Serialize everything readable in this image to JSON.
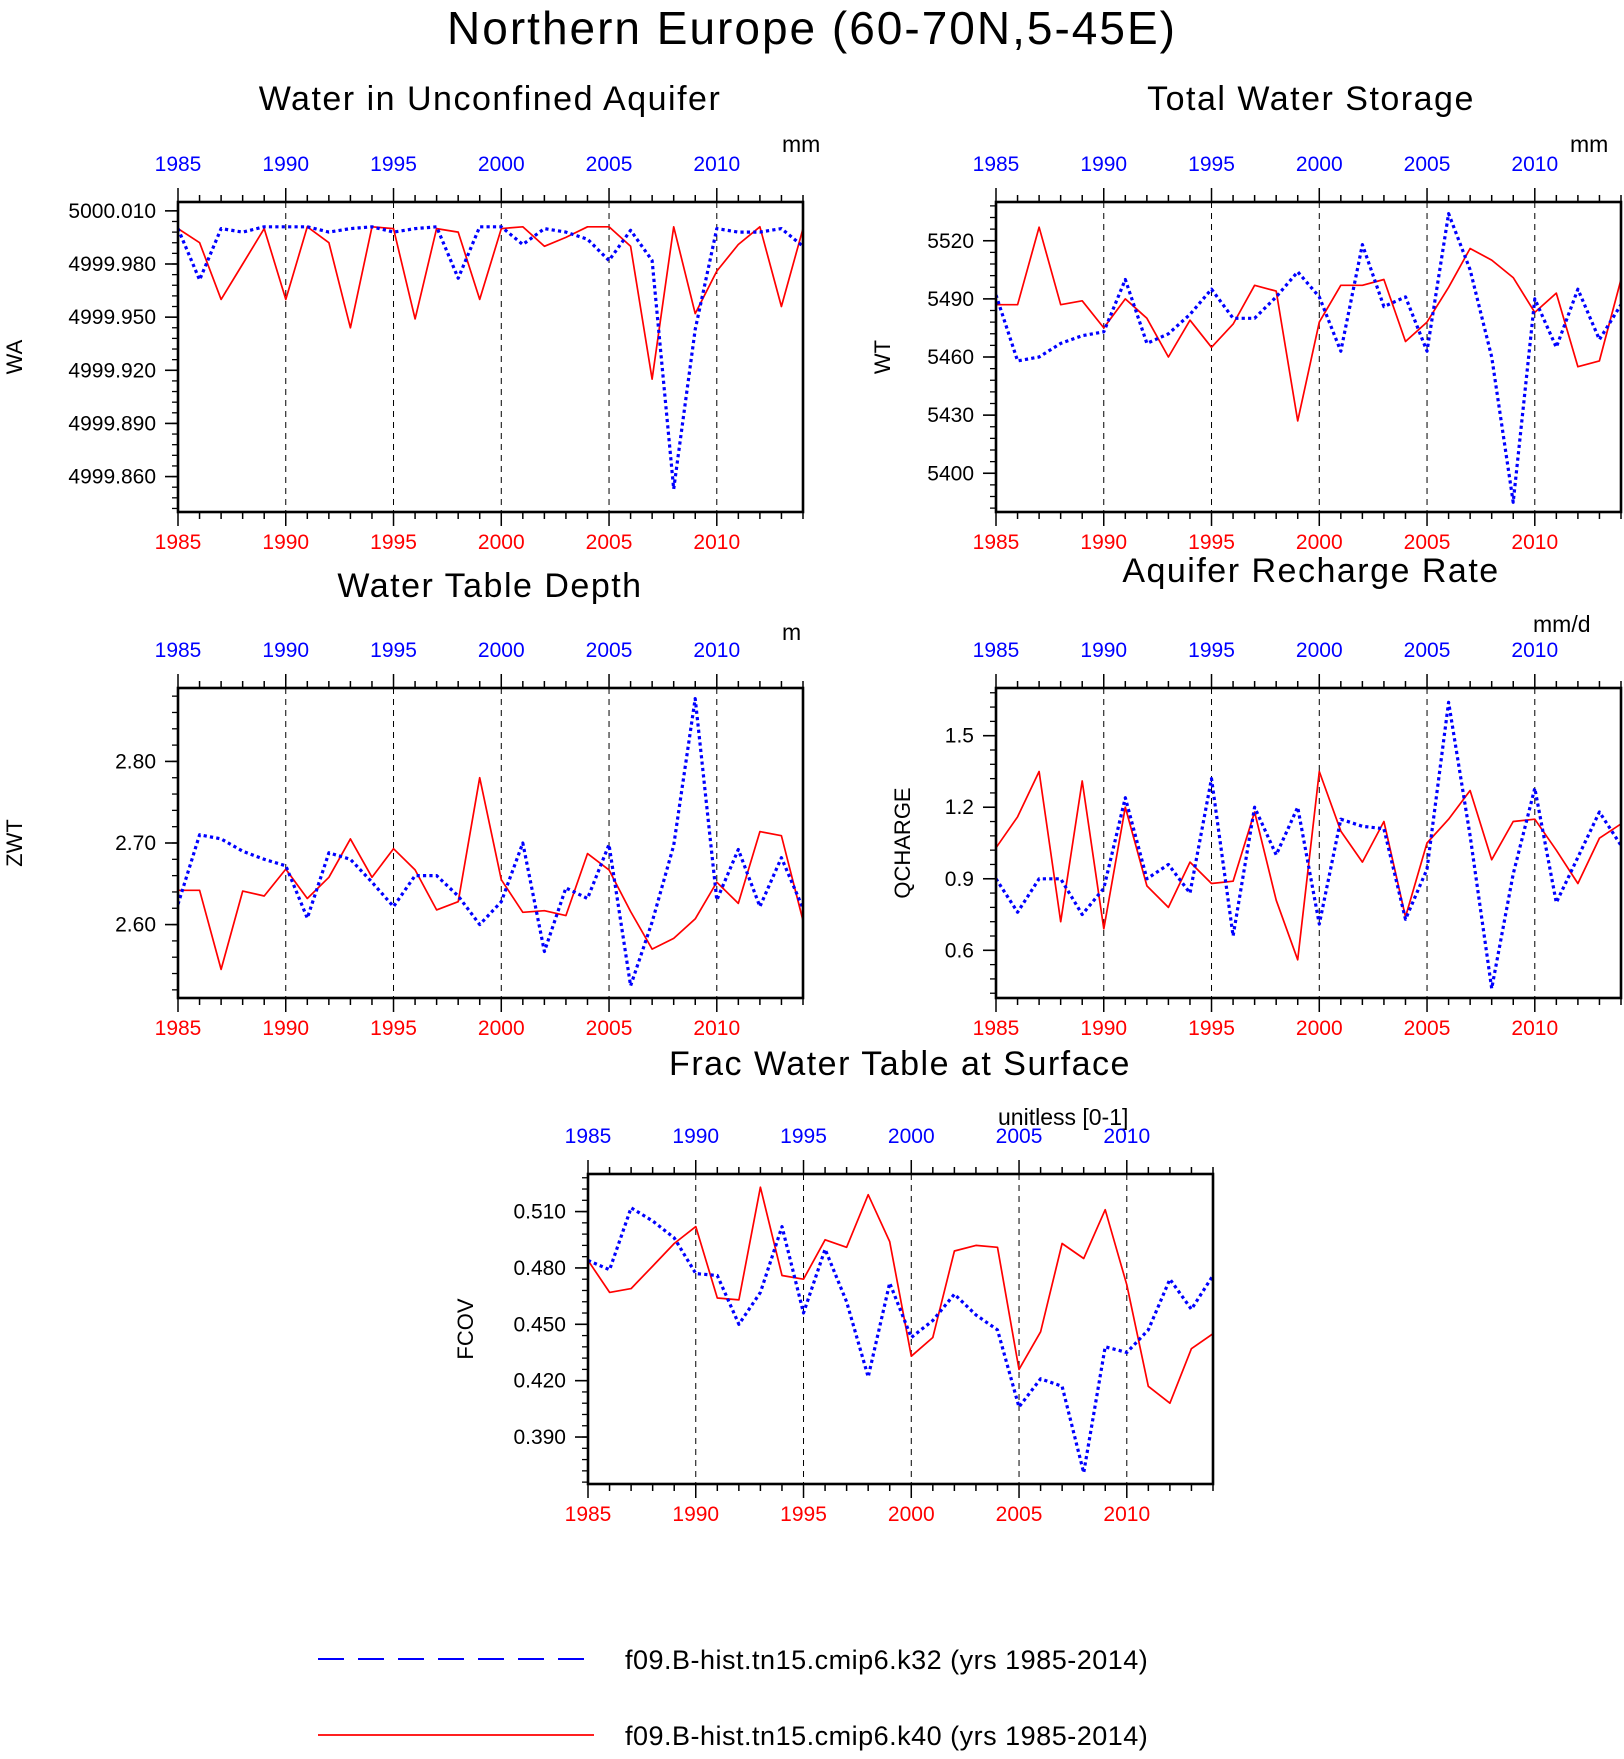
{
  "figure_title": "Northern Europe (60-70N,5-45E)",
  "colors": {
    "run1": "#0000ff",
    "run2": "#ff0000",
    "axis": "#000000"
  },
  "legend": [
    {
      "label": "f09.B-hist.tn15.cmip6.k32 (yrs 1985-2014)",
      "color": "#0000ff",
      "style": "dashed"
    },
    {
      "label": "f09.B-hist.tn15.cmip6.k40 (yrs 1985-2014)",
      "color": "#ff0000",
      "style": "solid"
    }
  ],
  "chart_data": [
    {
      "type": "line",
      "title": "Water in Unconfined Aquifer",
      "units": "mm",
      "ylabel": "WA",
      "xlim": [
        1985,
        2014
      ],
      "ylim": [
        4999.84,
        5000.015
      ],
      "yticks": [
        4999.86,
        4999.89,
        4999.92,
        4999.95,
        4999.98,
        5000.01
      ],
      "ytick_labels": [
        "4999.860",
        "4999.890",
        "4999.920",
        "4999.950",
        "4999.980",
        "5000.010"
      ],
      "xticks": [
        1985,
        1990,
        1995,
        2000,
        2005,
        2010
      ],
      "grid": "dashed vertical lines at 1990, 1995, 2000, 2005, 2010",
      "x": [
        1985,
        1986,
        1987,
        1988,
        1989,
        1990,
        1991,
        1992,
        1993,
        1994,
        1995,
        1996,
        1997,
        1998,
        1999,
        2000,
        2001,
        2002,
        2003,
        2004,
        2005,
        2006,
        2007,
        2008,
        2009,
        2010,
        2011,
        2012,
        2013,
        2014
      ],
      "series": [
        {
          "values": [
            5000.0,
            4999.971,
            5000.0,
            4999.998,
            5000.001,
            5000.001,
            5000.001,
            4999.998,
            5000.0,
            5000.001,
            4999.998,
            5000.0,
            5000.001,
            4999.972,
            5000.001,
            5000.001,
            4999.991,
            5000.0,
            4999.998,
            4999.994,
            4999.982,
            4999.999,
            4999.982,
            4999.853,
            4999.943,
            5000.0,
            4999.998,
            4999.998,
            5000.0,
            4999.99
          ]
        },
        {
          "values": [
            5000.0,
            4999.992,
            4999.96,
            4999.98,
            5000.0,
            4999.96,
            5000.001,
            4999.992,
            4999.944,
            5000.001,
            5000.0,
            4999.949,
            5000.0,
            4999.998,
            4999.96,
            5000.0,
            5000.001,
            4999.99,
            4999.995,
            5000.001,
            5000.001,
            4999.99,
            4999.915,
            5000.001,
            4999.952,
            4999.976,
            4999.991,
            5000.001,
            4999.956,
            5000.0
          ]
        }
      ]
    },
    {
      "type": "line",
      "title": "Total Water Storage",
      "units": "mm",
      "ylabel": "WT",
      "xlim": [
        1985,
        2014
      ],
      "ylim": [
        5380,
        5540
      ],
      "yticks": [
        5400,
        5430,
        5460,
        5490,
        5520
      ],
      "ytick_labels": [
        "5400",
        "5430",
        "5460",
        "5490",
        "5520"
      ],
      "xticks": [
        1985,
        1990,
        1995,
        2000,
        2005,
        2010
      ],
      "grid": "dashed vertical lines at 1990, 1995, 2000, 2005, 2010",
      "x": [
        1985,
        1986,
        1987,
        1988,
        1989,
        1990,
        1991,
        1992,
        1993,
        1994,
        1995,
        1996,
        1997,
        1998,
        1999,
        2000,
        2001,
        2002,
        2003,
        2004,
        2005,
        2006,
        2007,
        2008,
        2009,
        2010,
        2011,
        2012,
        2013,
        2014
      ],
      "series": [
        {
          "values": [
            5492,
            5458,
            5460,
            5467,
            5471,
            5473,
            5500,
            5467,
            5472,
            5482,
            5495,
            5480,
            5480,
            5491,
            5504,
            5491,
            5463,
            5518,
            5486,
            5491,
            5463,
            5534,
            5505,
            5460,
            5385,
            5490,
            5465,
            5495,
            5469,
            5487
          ]
        },
        {
          "values": [
            5487,
            5487,
            5527,
            5487,
            5489,
            5475,
            5490,
            5480,
            5460,
            5479,
            5465,
            5477,
            5497,
            5494,
            5427,
            5478,
            5497,
            5497,
            5500,
            5468,
            5478,
            5496,
            5516,
            5510,
            5501,
            5483,
            5493,
            5455,
            5458,
            5500
          ]
        }
      ]
    },
    {
      "type": "line",
      "title": "Water Table Depth",
      "units": "m",
      "ylabel": "ZWT",
      "xlim": [
        1985,
        2014
      ],
      "ylim": [
        2.51,
        2.89
      ],
      "yticks": [
        2.6,
        2.7,
        2.8
      ],
      "ytick_labels": [
        "2.60",
        "2.70",
        "2.80"
      ],
      "xticks": [
        1985,
        1990,
        1995,
        2000,
        2005,
        2010
      ],
      "grid": "dashed vertical lines at 1990, 1995, 2000, 2005, 2010",
      "x": [
        1985,
        1986,
        1987,
        1988,
        1989,
        1990,
        1991,
        1992,
        1993,
        1994,
        1995,
        1996,
        1997,
        1998,
        1999,
        2000,
        2001,
        2002,
        2003,
        2004,
        2005,
        2006,
        2007,
        2008,
        2009,
        2010,
        2011,
        2012,
        2013,
        2014
      ],
      "series": [
        {
          "values": [
            2.625,
            2.71,
            2.705,
            2.69,
            2.68,
            2.672,
            2.608,
            2.688,
            2.68,
            2.652,
            2.622,
            2.66,
            2.66,
            2.635,
            2.6,
            2.628,
            2.7,
            2.567,
            2.645,
            2.632,
            2.698,
            2.525,
            2.603,
            2.697,
            2.877,
            2.63,
            2.692,
            2.622,
            2.682,
            2.62
          ]
        },
        {
          "values": [
            2.642,
            2.642,
            2.545,
            2.641,
            2.635,
            2.668,
            2.632,
            2.658,
            2.705,
            2.658,
            2.693,
            2.667,
            2.618,
            2.628,
            2.78,
            2.655,
            2.615,
            2.617,
            2.611,
            2.687,
            2.667,
            2.616,
            2.57,
            2.583,
            2.607,
            2.652,
            2.626,
            2.714,
            2.709,
            2.605
          ]
        }
      ]
    },
    {
      "type": "line",
      "title": "Aquifer Recharge Rate",
      "units": "mm/d",
      "ylabel": "QCHARGE",
      "xlim": [
        1985,
        2014
      ],
      "ylim": [
        0.4,
        1.7
      ],
      "yticks": [
        0.6,
        0.9,
        1.2,
        1.5
      ],
      "ytick_labels": [
        "0.6",
        "0.9",
        "1.2",
        "1.5"
      ],
      "xticks": [
        1985,
        1990,
        1995,
        2000,
        2005,
        2010
      ],
      "grid": "dashed vertical lines at 1990, 1995, 2000, 2005, 2010",
      "x": [
        1985,
        1986,
        1987,
        1988,
        1989,
        1990,
        1991,
        1992,
        1993,
        1994,
        1995,
        1996,
        1997,
        1998,
        1999,
        2000,
        2001,
        2002,
        2003,
        2004,
        2005,
        2006,
        2007,
        2008,
        2009,
        2010,
        2011,
        2012,
        2013,
        2014
      ],
      "series": [
        {
          "values": [
            0.9,
            0.76,
            0.9,
            0.9,
            0.75,
            0.86,
            1.24,
            0.9,
            0.96,
            0.84,
            1.32,
            0.66,
            1.2,
            1.0,
            1.2,
            0.71,
            1.15,
            1.12,
            1.11,
            0.73,
            0.94,
            1.64,
            1.08,
            0.44,
            0.92,
            1.28,
            0.8,
            0.99,
            1.18,
            1.04
          ]
        },
        {
          "values": [
            1.03,
            1.16,
            1.35,
            0.72,
            1.31,
            0.69,
            1.2,
            0.87,
            0.78,
            0.97,
            0.88,
            0.89,
            1.18,
            0.81,
            0.56,
            1.35,
            1.1,
            0.97,
            1.14,
            0.74,
            1.05,
            1.15,
            1.27,
            0.98,
            1.14,
            1.15,
            1.02,
            0.88,
            1.07,
            1.13
          ]
        }
      ]
    },
    {
      "type": "line",
      "title": "Frac Water Table at Surface",
      "units": "unitless [0-1]",
      "ylabel": "FCOV",
      "xlim": [
        1985,
        2014
      ],
      "ylim": [
        0.365,
        0.53
      ],
      "yticks": [
        0.39,
        0.42,
        0.45,
        0.48,
        0.51
      ],
      "ytick_labels": [
        "0.390",
        "0.420",
        "0.450",
        "0.480",
        "0.510"
      ],
      "xticks": [
        1985,
        1990,
        1995,
        2000,
        2005,
        2010
      ],
      "grid": "dashed vertical lines at 1990, 1995, 2000, 2005, 2010",
      "x": [
        1985,
        1986,
        1987,
        1988,
        1989,
        1990,
        1991,
        1992,
        1993,
        1994,
        1995,
        1996,
        1997,
        1998,
        1999,
        2000,
        2001,
        2002,
        2003,
        2004,
        2005,
        2006,
        2007,
        2008,
        2009,
        2010,
        2011,
        2012,
        2013,
        2014
      ],
      "series": [
        {
          "values": [
            0.484,
            0.479,
            0.512,
            0.505,
            0.496,
            0.477,
            0.476,
            0.45,
            0.467,
            0.502,
            0.456,
            0.49,
            0.462,
            0.422,
            0.472,
            0.443,
            0.452,
            0.466,
            0.455,
            0.447,
            0.406,
            0.421,
            0.417,
            0.371,
            0.438,
            0.435,
            0.447,
            0.474,
            0.458,
            0.476
          ]
        },
        {
          "values": [
            0.484,
            0.467,
            0.469,
            0.481,
            0.493,
            0.502,
            0.464,
            0.463,
            0.523,
            0.476,
            0.474,
            0.495,
            0.491,
            0.519,
            0.494,
            0.433,
            0.443,
            0.489,
            0.492,
            0.491,
            0.426,
            0.446,
            0.493,
            0.485,
            0.511,
            0.471,
            0.417,
            0.408,
            0.437,
            0.445
          ]
        }
      ]
    }
  ]
}
